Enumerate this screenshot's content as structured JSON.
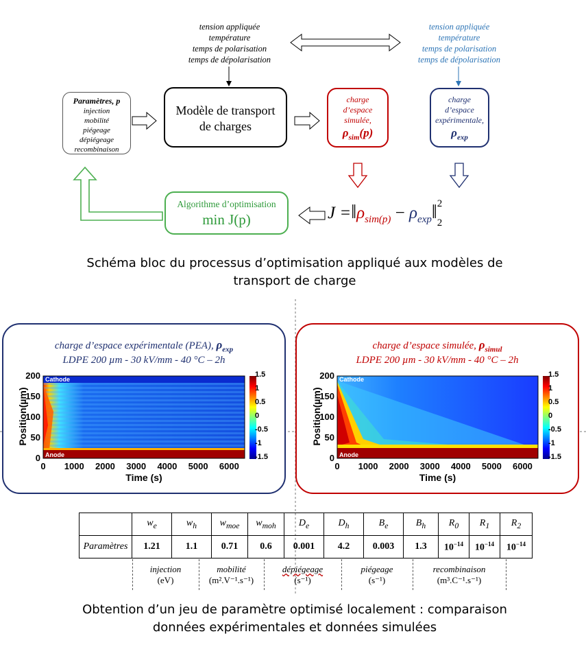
{
  "top_inputs": [
    "tension appliquée",
    "température",
    "temps de polarisation",
    "temps de dépolarisation"
  ],
  "top_inputs_right": [
    "tension appliquée",
    "température",
    "temps de polarisation",
    "temps de dépolarisation"
  ],
  "params_box": {
    "title": "Paramètres, p",
    "items": [
      "injection",
      "mobilité",
      "piégeage",
      "dépiégeage",
      "recombinaison"
    ]
  },
  "model_box": {
    "line1": "Modèle de transport",
    "line2": "de charges"
  },
  "sim_box": {
    "lines": [
      "charge",
      "d’espace",
      "simulée,"
    ],
    "symbol": "ρ",
    "sub": "sim",
    "arg": "(p)"
  },
  "exp_box": {
    "lines": [
      "charge",
      "d’espace",
      "expérimentale,"
    ],
    "symbol": "ρ",
    "sub": "exp"
  },
  "opt_box": {
    "title": "Algorithme d’optimisation",
    "formula": "min J(p)"
  },
  "cost_formula": {
    "J": "J =",
    "rho": "ρ",
    "sim_sub": "sim(p)",
    "minus": "−",
    "exp_sub": "exp",
    "sup": "2",
    "sub2": "2"
  },
  "caption1": [
    "Schéma bloc du processus d’optimisation appliqué aux modèles de",
    "transport de charge"
  ],
  "panel_exp": {
    "title": "charge d’espace expérimentale (PEA),",
    "symbol": "ρ",
    "sub": "exp",
    "subtitle": "LDPE 200 µm - 30 kV/mm - 40 °C – 2h",
    "cathode": "Cathode",
    "anode": "Anode"
  },
  "panel_sim": {
    "title": "charge d’espace simulée,",
    "symbol": "ρ",
    "sub": "simul",
    "subtitle": "LDPE 200 µm - 30 kV/mm - 40 °C – 2h",
    "cathode": "Cathode",
    "anode": "Anode"
  },
  "chart_data": [
    {
      "type": "heatmap",
      "xlabel": "Time (s)",
      "ylabel": "Position(µm)",
      "xlim": [
        0,
        6500
      ],
      "ylim": [
        0,
        200
      ],
      "x_ticks": [
        "0",
        "1000",
        "2000",
        "3000",
        "4000",
        "5000",
        "6000"
      ],
      "y_ticks": [
        "0",
        "50",
        "100",
        "150",
        "200"
      ],
      "colorbar_ticks": [
        "1.5",
        "1",
        "0.5",
        "0",
        "-0.5",
        "-1",
        "-1.5"
      ],
      "clim": [
        -1.5,
        1.5
      ],
      "grid": false
    },
    {
      "type": "heatmap",
      "xlabel": "Time (s)",
      "ylabel": "Position(µm)",
      "xlim": [
        0,
        6500
      ],
      "ylim": [
        0,
        200
      ],
      "x_ticks": [
        "0",
        "1000",
        "2000",
        "3000",
        "4000",
        "5000",
        "6000"
      ],
      "y_ticks": [
        "0",
        "50",
        "100",
        "150",
        "200"
      ],
      "colorbar_ticks": [
        "1.5",
        "1",
        "0.5",
        "0",
        "-0.5",
        "-1",
        "-1.5"
      ],
      "clim": [
        -1.5,
        1.5
      ],
      "grid": false
    }
  ],
  "table": {
    "headers": [
      {
        "b": "w",
        "s": "e"
      },
      {
        "b": "w",
        "s": "h"
      },
      {
        "b": "w",
        "s": "moe"
      },
      {
        "b": "w",
        "s": "moh"
      },
      {
        "b": "D",
        "s": "e"
      },
      {
        "b": "D",
        "s": "h"
      },
      {
        "b": "B",
        "s": "e"
      },
      {
        "b": "B",
        "s": "h"
      },
      {
        "b": "R",
        "s": "0"
      },
      {
        "b": "R",
        "s": "1"
      },
      {
        "b": "R",
        "s": "2"
      }
    ],
    "row_label": "Paramètres",
    "values": [
      "1.21",
      "1.1",
      "0.71",
      "0.6",
      "0.001",
      "4.2",
      "0.003",
      "1.3",
      "10",
      "10",
      "10"
    ],
    "exp": "−14"
  },
  "groups": [
    {
      "label": "injection",
      "unit": "(eV)"
    },
    {
      "label": "mobilité",
      "unit": "(m².V⁻¹.s⁻¹)"
    },
    {
      "label": "dépiégeage",
      "unit": "(s⁻¹)"
    },
    {
      "label": "piégeage",
      "unit": "(s⁻¹)"
    },
    {
      "label": "recombinaison",
      "unit": "(m³.C⁻¹.s⁻¹)"
    }
  ],
  "caption2": [
    "Obtention d’un jeu de paramètre optimisé localement : comparaison",
    "données expérimentales et données simulées"
  ],
  "colors": {
    "red": "#c00000",
    "navy": "#1f3070",
    "green": "#4caf50",
    "blue_text": "#2e75b6"
  }
}
